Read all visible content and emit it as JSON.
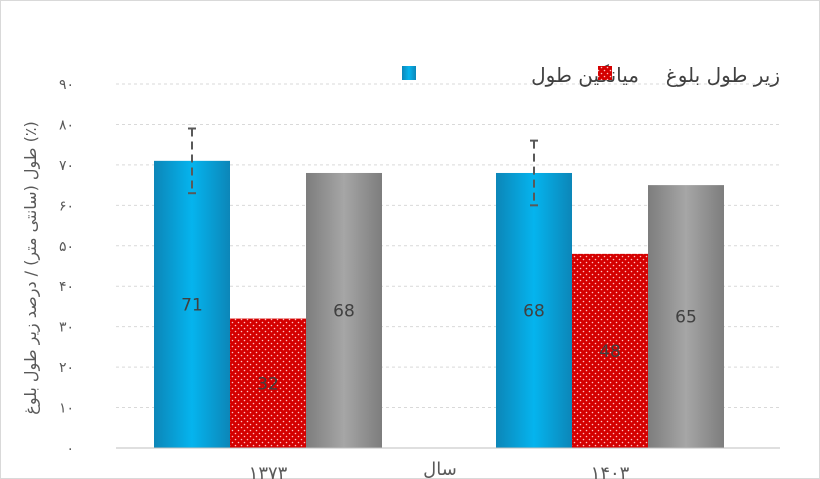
{
  "chart_data": {
    "type": "bar",
    "title": "",
    "xlabel": "سال",
    "ylabel": "طول (سانتی متر) / درصد زیر طول بلوغ (٪)",
    "categories": [
      "۱۳۷۳",
      "۱۴۰۳"
    ],
    "ylim": [
      0,
      90
    ],
    "yticks": [
      0,
      10,
      20,
      30,
      40,
      50,
      60,
      70,
      80,
      90
    ],
    "ytick_labels": [
      "۰",
      "۱۰",
      "۲۰",
      "۳۰",
      "۴۰",
      "۵۰",
      "۶۰",
      "۷۰",
      "۸۰",
      "۹۰"
    ],
    "grid": true,
    "legend_position": "top-right",
    "series": [
      {
        "name": "میانگین طول",
        "values": [
          71,
          68
        ],
        "labels": [
          "71",
          "68"
        ],
        "error": [
          8,
          8
        ],
        "color": "#00a7e1",
        "pattern": "solid",
        "in_legend": true
      },
      {
        "name": "زیر طول بلوغ",
        "values": [
          32,
          48
        ],
        "labels": [
          "32",
          "48"
        ],
        "color": "#d40000",
        "pattern": "dotted",
        "in_legend": true
      },
      {
        "values": [
          68,
          65
        ],
        "labels": [
          "68",
          "65"
        ],
        "color": "#9a9a9a",
        "pattern": "solid",
        "in_legend": false
      }
    ]
  }
}
